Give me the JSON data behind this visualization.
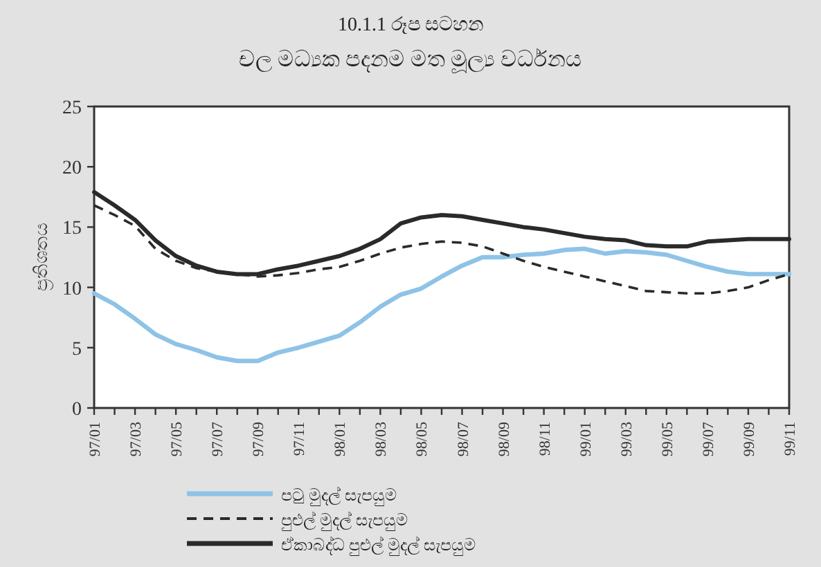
{
  "chart_data": {
    "type": "line",
    "title": "10.1.1 රූප සටහන",
    "subtitle": "චල මධ්‍යක පදනම මත මූල්‍ය වර්ධනය",
    "ylabel": "ප්‍රතිශතය",
    "categories": [
      "97/01",
      null,
      "97/03",
      null,
      "97/05",
      null,
      "97/07",
      null,
      "97/09",
      null,
      "97/11",
      null,
      "98/01",
      null,
      "98/03",
      null,
      "98/05",
      null,
      "98/07",
      null,
      "98/09",
      null,
      "98/11",
      null,
      "99/01",
      null,
      "99/03",
      null,
      "99/05",
      null,
      "99/07",
      null,
      "99/09",
      null,
      "99/11"
    ],
    "series": [
      {
        "name": "පටු මුදල් සැපයුම",
        "color": "#8ec3e6",
        "line_style": "solid",
        "values": [
          9.5,
          8.6,
          7.4,
          6.1,
          5.3,
          4.8,
          4.2,
          3.9,
          3.9,
          4.6,
          5.0,
          5.5,
          6.0,
          7.1,
          8.4,
          9.4,
          9.9,
          10.9,
          11.8,
          12.5,
          12.5,
          12.7,
          12.8,
          13.1,
          13.2,
          12.8,
          13.0,
          12.9,
          12.7,
          12.2,
          11.7,
          11.3,
          11.1,
          11.1,
          11.1
        ]
      },
      {
        "name": "පුළුල් මුදල් සැපයුම",
        "color": "#2a2a2a",
        "line_style": "dashed",
        "values": [
          16.8,
          16.0,
          15.1,
          13.2,
          12.2,
          11.6,
          11.3,
          11.1,
          10.9,
          11.0,
          11.2,
          11.5,
          11.7,
          12.2,
          12.8,
          13.3,
          13.6,
          13.8,
          13.7,
          13.4,
          12.8,
          12.2,
          11.7,
          11.3,
          10.9,
          10.5,
          10.1,
          9.7,
          9.6,
          9.5,
          9.5,
          9.7,
          10.0,
          10.6,
          11.1
        ]
      },
      {
        "name": "ඒකාබද්ධ පුළුල් මුදල් සැපයුම",
        "color": "#2a2a2a",
        "line_style": "solid",
        "values": [
          17.9,
          16.8,
          15.6,
          13.9,
          12.6,
          11.8,
          11.3,
          11.1,
          11.1,
          11.5,
          11.8,
          12.2,
          12.6,
          13.2,
          14.0,
          15.3,
          15.8,
          16.0,
          15.9,
          15.6,
          15.3,
          15.0,
          14.8,
          14.5,
          14.2,
          14.0,
          13.9,
          13.5,
          13.4,
          13.4,
          13.8,
          13.9,
          14.0,
          14.0,
          14.0
        ]
      }
    ],
    "ylim": [
      0,
      25
    ],
    "yticks": [
      0,
      5,
      10,
      15,
      20,
      25
    ],
    "legend": "bottom"
  }
}
